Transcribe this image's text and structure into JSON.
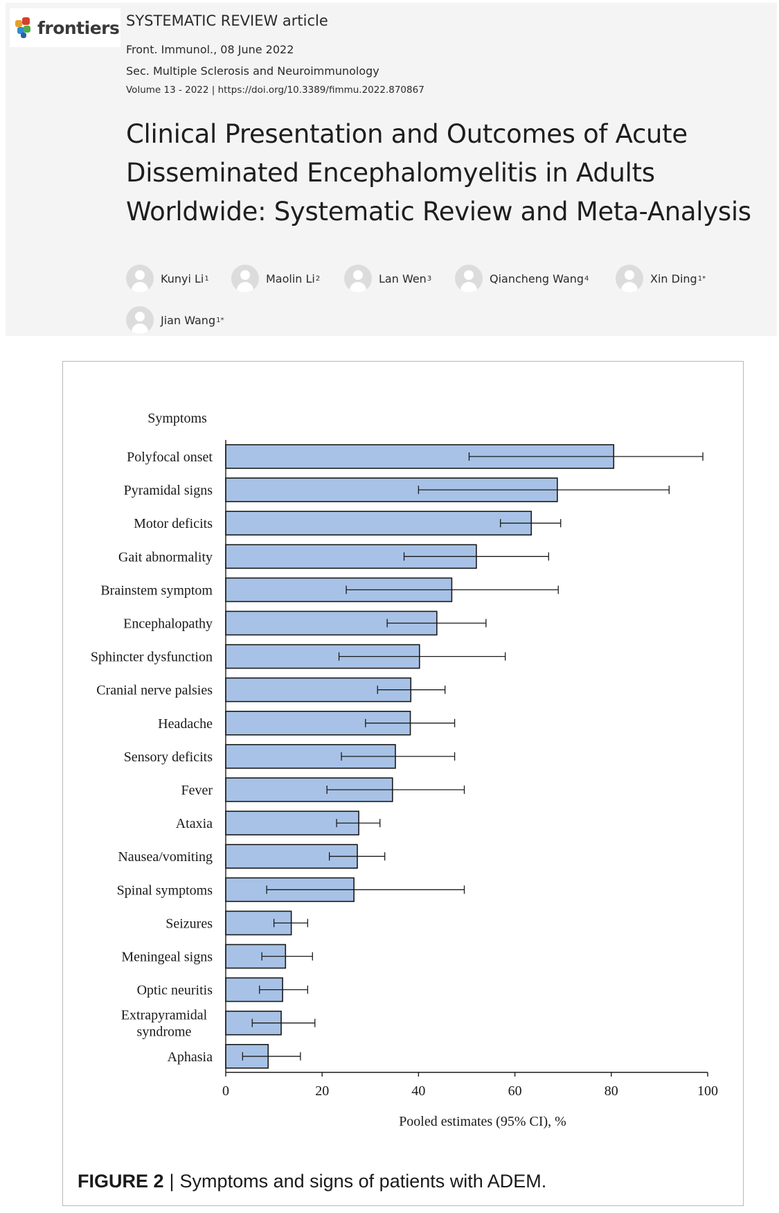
{
  "header": {
    "logo_text": "frontiers",
    "article_type": "SYSTEMATIC REVIEW article",
    "journal_line": "Front. Immunol., 08 June 2022",
    "section_line": "Sec. Multiple Sclerosis and Neuroimmunology",
    "volume_line": "Volume 13 - 2022 | https://doi.org/10.3389/fimmu.2022.870867",
    "title": "Clinical Presentation and Outcomes of Acute Disseminated Encephalomyelitis in Adults Worldwide: Systematic Review and Meta-Analysis",
    "authors": [
      {
        "name": "Kunyi Li",
        "sup": "1"
      },
      {
        "name": "Maolin Li",
        "sup": "2"
      },
      {
        "name": "Lan Wen",
        "sup": "3"
      },
      {
        "name": "Qiancheng Wang",
        "sup": "4"
      },
      {
        "name": "Xin Ding",
        "sup": "1*"
      },
      {
        "name": "Jian Wang",
        "sup": "1*"
      }
    ]
  },
  "figure": {
    "caption_label": "FIGURE 2",
    "caption_sep": "|",
    "caption_text": "Symptoms and signs of patients with ADEM."
  },
  "colors": {
    "bar_fill": "#a7c2e6",
    "bar_stroke": "#1a1a1a",
    "header_bg": "#f4f4f4"
  },
  "chart_data": {
    "type": "bar",
    "orientation": "horizontal",
    "category_header": "Symptoms",
    "xlabel": "Pooled estimates (95% CI), %",
    "xlim": [
      0,
      100
    ],
    "xticks": [
      0,
      20,
      40,
      60,
      80,
      100
    ],
    "grid": false,
    "categories": [
      "Polyfocal onset",
      "Pyramidal signs",
      "Motor deficits",
      "Gait abnormality",
      "Brainstem symptom",
      "Encephalopathy",
      "Sphincter dysfunction",
      "Cranial nerve palsies",
      "Headache",
      "Sensory deficits",
      "Fever",
      "Ataxia",
      "Nausea/vomiting",
      "Spinal symptoms",
      "Seizures",
      "Meningeal signs",
      "Optic neuritis",
      "Extrapyramidal syndrome",
      "Aphasia"
    ],
    "values": [
      80.5,
      68.8,
      63.4,
      52.0,
      46.9,
      43.8,
      40.2,
      38.4,
      38.3,
      35.2,
      34.6,
      27.6,
      27.3,
      26.6,
      13.6,
      12.4,
      11.8,
      11.5,
      8.8
    ],
    "ci_lower": [
      50.5,
      40.0,
      57.0,
      37.0,
      25.0,
      33.5,
      23.5,
      31.5,
      29.0,
      24.0,
      21.0,
      23.0,
      21.5,
      8.5,
      10.0,
      7.5,
      7.0,
      5.5,
      3.5
    ],
    "ci_upper": [
      99.0,
      92.0,
      69.5,
      67.0,
      69.0,
      54.0,
      58.0,
      45.5,
      47.5,
      47.5,
      49.5,
      32.0,
      33.0,
      49.5,
      17.0,
      18.0,
      17.0,
      18.5,
      15.5
    ]
  }
}
